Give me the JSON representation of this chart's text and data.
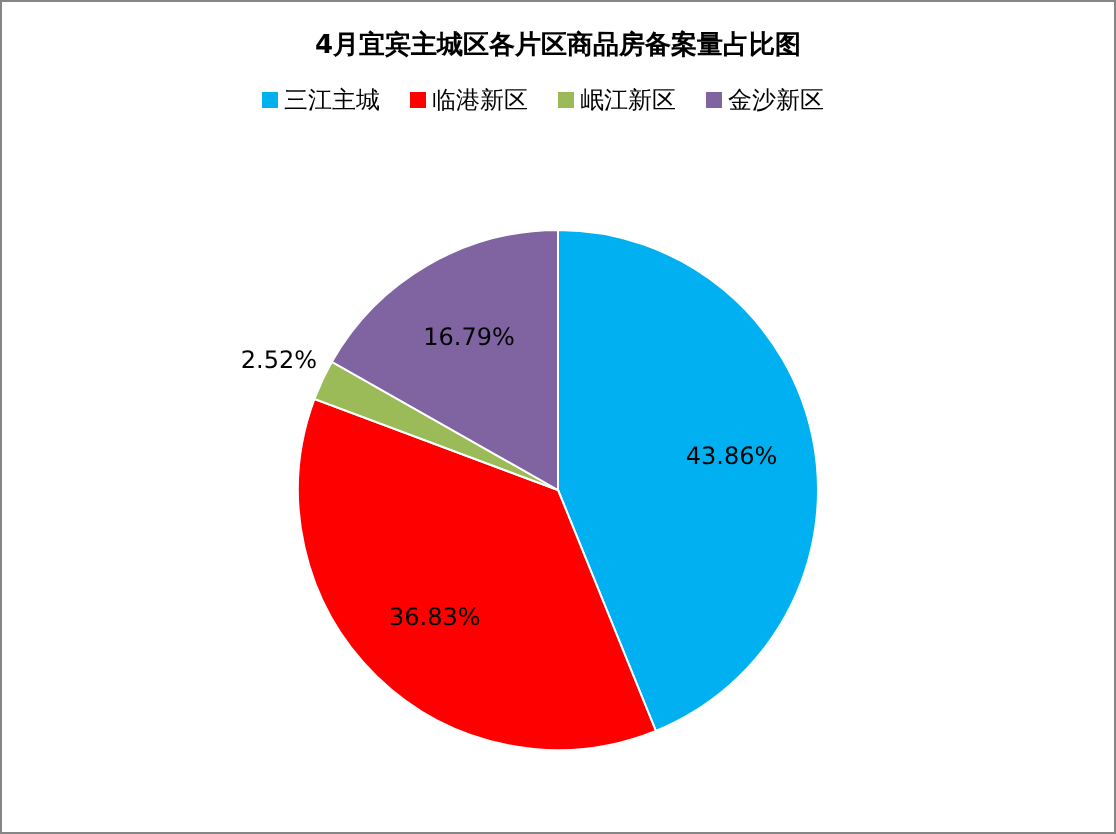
{
  "chart_data": {
    "type": "pie",
    "title": "4月宜宾主城区各片区商品房备案量占比图",
    "categories": [
      "三江主城",
      "临港新区",
      "岷江新区",
      "金沙新区"
    ],
    "values": [
      43.86,
      36.83,
      2.52,
      16.79
    ],
    "colors": [
      "#00b0f0",
      "#ff0000",
      "#9bbb59",
      "#8064a2"
    ],
    "value_labels": [
      "43.86%",
      "36.83%",
      "2.52%",
      "16.79%"
    ],
    "legend": "top"
  }
}
